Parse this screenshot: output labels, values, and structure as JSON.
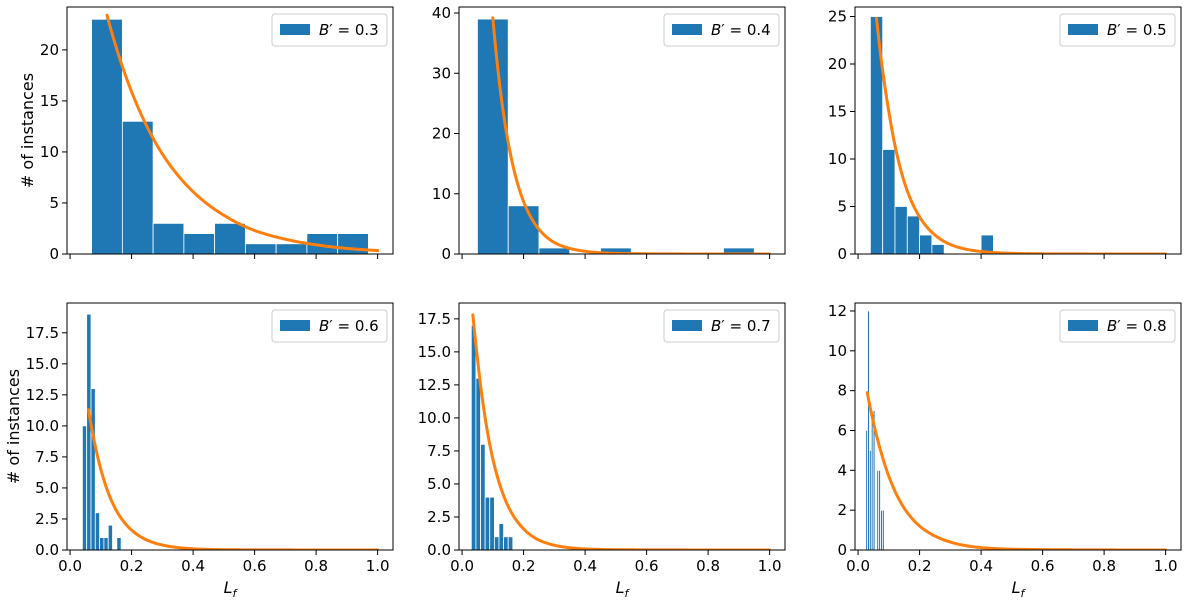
{
  "chart_data": [
    {
      "type": "bar",
      "legend": {
        "symbol": "B",
        "prime": "′",
        "operator": " = ",
        "value": "0.3",
        "position": "top-right"
      },
      "bins": [
        {
          "x0": 0.07,
          "x1": 0.17,
          "count": 23
        },
        {
          "x0": 0.17,
          "x1": 0.27,
          "count": 13
        },
        {
          "x0": 0.27,
          "x1": 0.37,
          "count": 3
        },
        {
          "x0": 0.37,
          "x1": 0.47,
          "count": 2
        },
        {
          "x0": 0.47,
          "x1": 0.57,
          "count": 3
        },
        {
          "x0": 0.57,
          "x1": 0.67,
          "count": 1
        },
        {
          "x0": 0.67,
          "x1": 0.77,
          "count": 1
        },
        {
          "x0": 0.77,
          "x1": 0.87,
          "count": 2
        },
        {
          "x0": 0.87,
          "x1": 0.97,
          "count": 2
        }
      ],
      "fit": {
        "type": "exponential",
        "x_start": 0.12,
        "x_end": 1.0,
        "points": [
          [
            0.12,
            23.4
          ],
          [
            0.2,
            15.9
          ],
          [
            0.3,
            9.8
          ],
          [
            0.4,
            6.1
          ],
          [
            0.5,
            3.8
          ],
          [
            0.6,
            2.3
          ],
          [
            0.7,
            1.45
          ],
          [
            0.8,
            0.9
          ],
          [
            0.9,
            0.55
          ],
          [
            1.0,
            0.34
          ]
        ]
      },
      "xlim": [
        -0.01,
        1.05
      ],
      "ylim": [
        0,
        24.2
      ],
      "yticks": [
        "0",
        "5",
        "10",
        "15",
        "20"
      ],
      "ytick_values": [
        0,
        5,
        10,
        15,
        20
      ],
      "xticks": [
        0.0,
        0.2,
        0.4,
        0.6,
        0.8,
        1.0
      ],
      "xtick_labels": [],
      "ylabel": "# of instances",
      "xlabel": ""
    },
    {
      "type": "bar",
      "legend": {
        "symbol": "B",
        "prime": "′",
        "operator": " = ",
        "value": "0.4",
        "position": "top-right"
      },
      "bins": [
        {
          "x0": 0.05,
          "x1": 0.15,
          "count": 39
        },
        {
          "x0": 0.15,
          "x1": 0.25,
          "count": 8
        },
        {
          "x0": 0.25,
          "x1": 0.35,
          "count": 1
        },
        {
          "x0": 0.35,
          "x1": 0.45,
          "count": 0
        },
        {
          "x0": 0.45,
          "x1": 0.55,
          "count": 1
        },
        {
          "x0": 0.55,
          "x1": 0.65,
          "count": 0
        },
        {
          "x0": 0.65,
          "x1": 0.75,
          "count": 0
        },
        {
          "x0": 0.75,
          "x1": 0.85,
          "count": 0
        },
        {
          "x0": 0.85,
          "x1": 0.95,
          "count": 1
        }
      ],
      "fit": {
        "type": "exponential",
        "x_start": 0.1,
        "x_end": 1.0,
        "points": [
          [
            0.1,
            39.2
          ],
          [
            0.15,
            18.5
          ],
          [
            0.2,
            8.7
          ],
          [
            0.25,
            4.1
          ],
          [
            0.3,
            1.9
          ],
          [
            0.4,
            0.45
          ],
          [
            0.5,
            0.1
          ],
          [
            0.6,
            0.03
          ],
          [
            1.0,
            0.0
          ]
        ]
      },
      "xlim": [
        -0.01,
        1.05
      ],
      "ylim": [
        0,
        41
      ],
      "yticks": [
        "0",
        "10",
        "20",
        "30",
        "40"
      ],
      "ytick_values": [
        0,
        10,
        20,
        30,
        40
      ],
      "xticks": [
        0.0,
        0.2,
        0.4,
        0.6,
        0.8,
        1.0
      ],
      "xtick_labels": [],
      "ylabel": "",
      "xlabel": ""
    },
    {
      "type": "bar",
      "legend": {
        "symbol": "B",
        "prime": "′",
        "operator": " = ",
        "value": "0.5",
        "position": "top-right"
      },
      "bins": [
        {
          "x0": 0.04,
          "x1": 0.08,
          "count": 25
        },
        {
          "x0": 0.08,
          "x1": 0.12,
          "count": 11
        },
        {
          "x0": 0.12,
          "x1": 0.16,
          "count": 5
        },
        {
          "x0": 0.16,
          "x1": 0.2,
          "count": 4
        },
        {
          "x0": 0.2,
          "x1": 0.24,
          "count": 2
        },
        {
          "x0": 0.24,
          "x1": 0.28,
          "count": 1
        },
        {
          "x0": 0.28,
          "x1": 0.32,
          "count": 0
        },
        {
          "x0": 0.32,
          "x1": 0.36,
          "count": 0
        },
        {
          "x0": 0.36,
          "x1": 0.4,
          "count": 0
        },
        {
          "x0": 0.4,
          "x1": 0.44,
          "count": 2
        }
      ],
      "fit": {
        "type": "exponential",
        "x_start": 0.06,
        "x_end": 1.0,
        "points": [
          [
            0.06,
            24.8
          ],
          [
            0.1,
            15.0
          ],
          [
            0.15,
            7.6
          ],
          [
            0.2,
            3.9
          ],
          [
            0.25,
            2.0
          ],
          [
            0.3,
            1.0
          ],
          [
            0.4,
            0.26
          ],
          [
            0.5,
            0.07
          ],
          [
            0.6,
            0.02
          ],
          [
            1.0,
            0.0
          ]
        ]
      },
      "xlim": [
        -0.01,
        1.05
      ],
      "ylim": [
        0,
        26
      ],
      "yticks": [
        "0",
        "5",
        "10",
        "15",
        "20",
        "25"
      ],
      "ytick_values": [
        0,
        5,
        10,
        15,
        20,
        25
      ],
      "xticks": [
        0.0,
        0.2,
        0.4,
        0.6,
        0.8,
        1.0
      ],
      "xtick_labels": [],
      "ylabel": "",
      "xlabel": ""
    },
    {
      "type": "bar",
      "legend": {
        "symbol": "B",
        "prime": "′",
        "operator": " = ",
        "value": "0.6",
        "position": "top-right"
      },
      "bins": [
        {
          "x0": 0.04,
          "x1": 0.054,
          "count": 10
        },
        {
          "x0": 0.054,
          "x1": 0.068,
          "count": 19
        },
        {
          "x0": 0.068,
          "x1": 0.082,
          "count": 13
        },
        {
          "x0": 0.082,
          "x1": 0.096,
          "count": 3
        },
        {
          "x0": 0.096,
          "x1": 0.11,
          "count": 1
        },
        {
          "x0": 0.11,
          "x1": 0.124,
          "count": 1
        },
        {
          "x0": 0.124,
          "x1": 0.138,
          "count": 2
        },
        {
          "x0": 0.138,
          "x1": 0.152,
          "count": 0
        },
        {
          "x0": 0.152,
          "x1": 0.166,
          "count": 1
        },
        {
          "x0": 0.166,
          "x1": 0.18,
          "count": 0
        }
      ],
      "fit": {
        "type": "exponential",
        "x_start": 0.06,
        "x_end": 1.0,
        "points": [
          [
            0.06,
            11.3
          ],
          [
            0.08,
            8.6
          ],
          [
            0.1,
            6.5
          ],
          [
            0.15,
            3.2
          ],
          [
            0.2,
            1.6
          ],
          [
            0.25,
            0.8
          ],
          [
            0.3,
            0.4
          ],
          [
            0.4,
            0.1
          ],
          [
            0.5,
            0.02
          ],
          [
            1.0,
            0.0
          ]
        ]
      },
      "xlim": [
        -0.01,
        1.05
      ],
      "ylim": [
        0,
        19.9
      ],
      "yticks": [
        "0.0",
        "2.5",
        "5.0",
        "7.5",
        "10.0",
        "12.5",
        "15.0",
        "17.5"
      ],
      "ytick_values": [
        0,
        2.5,
        5,
        7.5,
        10,
        12.5,
        15,
        17.5
      ],
      "xticks": [
        0.0,
        0.2,
        0.4,
        0.6,
        0.8,
        1.0
      ],
      "xtick_labels": [
        "0.0",
        "0.2",
        "0.4",
        "0.6",
        "0.8",
        "1.0"
      ],
      "ylabel": "# of instances",
      "xlabel_base": "L",
      "xlabel_sub": "f"
    },
    {
      "type": "bar",
      "legend": {
        "symbol": "B",
        "prime": "′",
        "operator": " = ",
        "value": "0.7",
        "position": "top-right"
      },
      "bins": [
        {
          "x0": 0.03,
          "x1": 0.045,
          "count": 17
        },
        {
          "x0": 0.045,
          "x1": 0.06,
          "count": 13
        },
        {
          "x0": 0.06,
          "x1": 0.075,
          "count": 8
        },
        {
          "x0": 0.075,
          "x1": 0.09,
          "count": 4
        },
        {
          "x0": 0.09,
          "x1": 0.105,
          "count": 4
        },
        {
          "x0": 0.105,
          "x1": 0.12,
          "count": 1
        },
        {
          "x0": 0.12,
          "x1": 0.135,
          "count": 2
        },
        {
          "x0": 0.135,
          "x1": 0.15,
          "count": 1
        },
        {
          "x0": 0.15,
          "x1": 0.165,
          "count": 1
        }
      ],
      "fit": {
        "type": "exponential",
        "x_start": 0.035,
        "x_end": 1.0,
        "points": [
          [
            0.035,
            17.8
          ],
          [
            0.05,
            14.5
          ],
          [
            0.075,
            10.0
          ],
          [
            0.1,
            6.9
          ],
          [
            0.15,
            3.3
          ],
          [
            0.2,
            1.6
          ],
          [
            0.25,
            0.75
          ],
          [
            0.3,
            0.36
          ],
          [
            0.4,
            0.08
          ],
          [
            0.5,
            0.02
          ],
          [
            1.0,
            0.0
          ]
        ]
      },
      "xlim": [
        -0.01,
        1.05
      ],
      "ylim": [
        0,
        18.7
      ],
      "yticks": [
        "0.0",
        "2.5",
        "5.0",
        "7.5",
        "10.0",
        "12.5",
        "15.0",
        "17.5"
      ],
      "ytick_values": [
        0,
        2.5,
        5,
        7.5,
        10,
        12.5,
        15,
        17.5
      ],
      "xticks": [
        0.0,
        0.2,
        0.4,
        0.6,
        0.8,
        1.0
      ],
      "xtick_labels": [
        "0.0",
        "0.2",
        "0.4",
        "0.6",
        "0.8",
        "1.0"
      ],
      "ylabel": "",
      "xlabel_base": "L",
      "xlabel_sub": "f"
    },
    {
      "type": "bar",
      "legend": {
        "symbol": "B",
        "prime": "′",
        "operator": " = ",
        "value": "0.8",
        "position": "top-right"
      },
      "bins": [
        {
          "x0": 0.025,
          "x1": 0.031,
          "count": 6
        },
        {
          "x0": 0.031,
          "x1": 0.037,
          "count": 12
        },
        {
          "x0": 0.037,
          "x1": 0.043,
          "count": 5
        },
        {
          "x0": 0.043,
          "x1": 0.049,
          "count": 7
        },
        {
          "x0": 0.049,
          "x1": 0.055,
          "count": 7
        },
        {
          "x0": 0.055,
          "x1": 0.061,
          "count": 0
        },
        {
          "x0": 0.061,
          "x1": 0.067,
          "count": 4
        },
        {
          "x0": 0.067,
          "x1": 0.073,
          "count": 4
        },
        {
          "x0": 0.073,
          "x1": 0.079,
          "count": 2
        },
        {
          "x0": 0.079,
          "x1": 0.085,
          "count": 2
        }
      ],
      "fit": {
        "type": "exponential",
        "x_start": 0.03,
        "x_end": 1.0,
        "points": [
          [
            0.03,
            7.9
          ],
          [
            0.05,
            6.4
          ],
          [
            0.075,
            4.9
          ],
          [
            0.1,
            3.7
          ],
          [
            0.15,
            2.1
          ],
          [
            0.2,
            1.2
          ],
          [
            0.25,
            0.7
          ],
          [
            0.3,
            0.4
          ],
          [
            0.4,
            0.12
          ],
          [
            0.5,
            0.04
          ],
          [
            1.0,
            0.0
          ]
        ]
      },
      "xlim": [
        -0.01,
        1.05
      ],
      "ylim": [
        0,
        12.4
      ],
      "yticks": [
        "0",
        "2",
        "4",
        "6",
        "8",
        "10",
        "12"
      ],
      "ytick_values": [
        0,
        2,
        4,
        6,
        8,
        10,
        12
      ],
      "xticks": [
        0.0,
        0.2,
        0.4,
        0.6,
        0.8,
        1.0
      ],
      "xtick_labels": [
        "0.0",
        "0.2",
        "0.4",
        "0.6",
        "0.8",
        "1.0"
      ],
      "ylabel": "",
      "xlabel_base": "L",
      "xlabel_sub": "f"
    }
  ],
  "colors": {
    "bar": "#1f77b4",
    "fit": "#ff7f0e",
    "axis": "#000000",
    "legend_border": "#cccccc"
  }
}
